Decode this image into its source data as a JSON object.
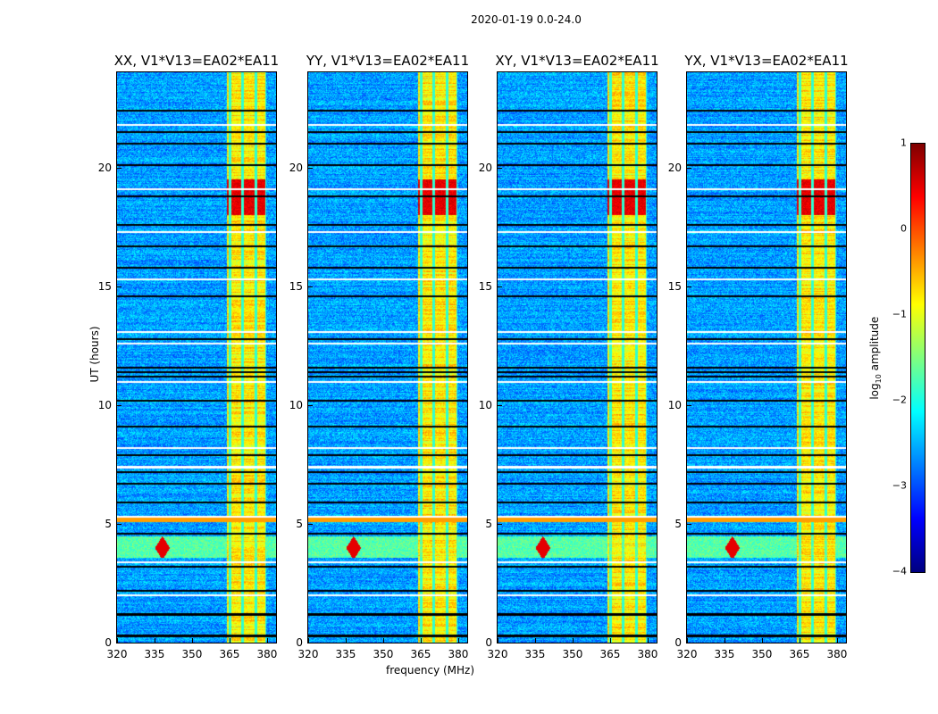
{
  "chart_data": {
    "type": "heatmap",
    "title": "2020-01-19 0.0-24.0",
    "xlabel": "frequency (MHz)",
    "ylabel": "UT (hours)",
    "xlim": [
      320,
      383.6
    ],
    "ylim": [
      0,
      24
    ],
    "xticks": [
      "320",
      "335",
      "350",
      "365",
      "380"
    ],
    "yticks": [
      "0",
      "5",
      "10",
      "15",
      "20"
    ],
    "xtick_values": [
      320,
      335,
      350,
      365,
      380
    ],
    "ytick_values": [
      0,
      5,
      10,
      15,
      20
    ],
    "panels": [
      {
        "title": "XX, V1*V13=EA02*EA11"
      },
      {
        "title": "YY, V1*V13=EA02*EA11"
      },
      {
        "title": "XY, V1*V13=EA02*EA11"
      },
      {
        "title": "YX, V1*V13=EA02*EA11"
      }
    ],
    "colorbar": {
      "label": "log10 amplitude",
      "label_main": "log",
      "label_sub": "10",
      "label_rest": " amplitude",
      "colormap": "jet",
      "range": [
        -4,
        1
      ],
      "ticks": [
        "1",
        "0",
        "−1",
        "−2",
        "−3",
        "−4"
      ],
      "tick_values": [
        1,
        0,
        -1,
        -2,
        -3,
        -4
      ]
    },
    "features": {
      "background_log_amp": -2.6,
      "bright_band_mhz": [
        363.9,
        379.6
      ],
      "bright_band_log_amp": -0.8,
      "band_gap_channels_mhz": [
        365,
        370,
        375.4,
        379.6
      ],
      "strong_rfi_hours": [
        18.0,
        19.5
      ],
      "rfi_burst_hours": [
        3.6,
        4.5
      ],
      "rfi_burst_freq_mhz": 338,
      "flagged_black_rows_hours": [
        0.3,
        1.2,
        2.2,
        3.2,
        4.6,
        5.9,
        6.7,
        7.2,
        7.9,
        9.1,
        10.2,
        11.2,
        11.4,
        11.6,
        12.8,
        14.6,
        15.8,
        16.7,
        17.6,
        18.8,
        20.1,
        21.0,
        21.5,
        22.4
      ],
      "flagged_white_rows_hours": [
        2.0,
        3.4,
        5.3,
        7.4,
        8.2,
        11.0,
        12.6,
        13.1,
        15.3,
        17.3,
        19.1,
        21.8
      ]
    }
  }
}
